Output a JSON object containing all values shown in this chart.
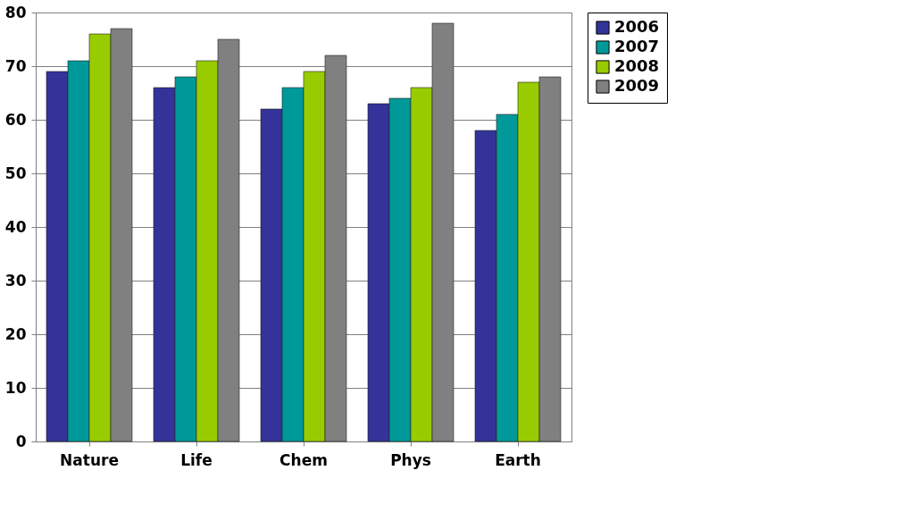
{
  "chart_data": {
    "type": "bar",
    "categories": [
      "Nature",
      "Life",
      "Chem",
      "Phys",
      "Earth"
    ],
    "series": [
      {
        "name": "2006",
        "color": "#333399",
        "values": [
          69,
          66,
          62,
          63,
          58
        ]
      },
      {
        "name": "2007",
        "color": "#009999",
        "values": [
          71,
          68,
          66,
          64,
          61
        ]
      },
      {
        "name": "2008",
        "color": "#99cc00",
        "values": [
          76,
          71,
          69,
          66,
          67
        ]
      },
      {
        "name": "2009",
        "color": "#808080",
        "values": [
          77,
          75,
          72,
          78,
          68
        ]
      }
    ],
    "ylim": [
      0,
      80
    ],
    "yticks": [
      0,
      10,
      20,
      30,
      40,
      50,
      60,
      70,
      80
    ],
    "grid": "y",
    "legend": "right"
  }
}
